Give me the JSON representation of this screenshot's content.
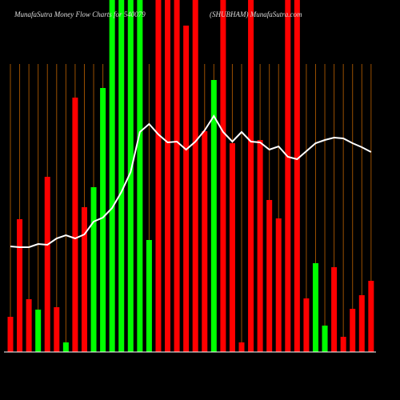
{
  "chart_data": {
    "type": "bar",
    "title": "MunafaSutra  Money Flow  Charts for 540079",
    "subtitle": "(SHUBHAM) MunafaSutra.com",
    "ylim": [
      0,
      440
    ],
    "bars": {
      "values": [
        44,
        166,
        66,
        53,
        219,
        56,
        12,
        318,
        181,
        206,
        330,
        440,
        440,
        440,
        440,
        140,
        440,
        440,
        440,
        408,
        440,
        276,
        340,
        440,
        261,
        12,
        440,
        265,
        190,
        167,
        440,
        440,
        67,
        111,
        33,
        106,
        19,
        54,
        71,
        89
      ],
      "colors": [
        "#ff0000",
        "#ff0000",
        "#ff0000",
        "#00ff00",
        "#ff0000",
        "#ff0000",
        "#00ff00",
        "#ff0000",
        "#ff0000",
        "#00ff00",
        "#00ff00",
        "#00ff00",
        "#00ff00",
        "#00ff00",
        "#00ff00",
        "#00ff00",
        "#ff0000",
        "#ff0000",
        "#ff0000",
        "#ff0000",
        "#ff0000",
        "#ff0000",
        "#00ff00",
        "#ff0000",
        "#ff0000",
        "#ff0000",
        "#ff0000",
        "#ff0000",
        "#ff0000",
        "#ff0000",
        "#ff0000",
        "#ff0000",
        "#ff0000",
        "#00ff00",
        "#00ff00",
        "#ff0000",
        "#ff0000",
        "#ff0000",
        "#ff0000",
        "#ff0000"
      ]
    },
    "line": {
      "color": "#ffffff",
      "values": [
        132,
        131,
        131,
        135,
        134,
        142,
        146,
        142,
        147,
        163,
        168,
        180,
        200,
        225,
        275,
        285,
        272,
        262,
        263,
        253,
        263,
        277,
        295,
        275,
        263,
        275,
        263,
        262,
        253,
        257,
        244,
        241,
        251,
        261,
        265,
        268,
        267,
        261,
        256,
        250
      ]
    }
  }
}
